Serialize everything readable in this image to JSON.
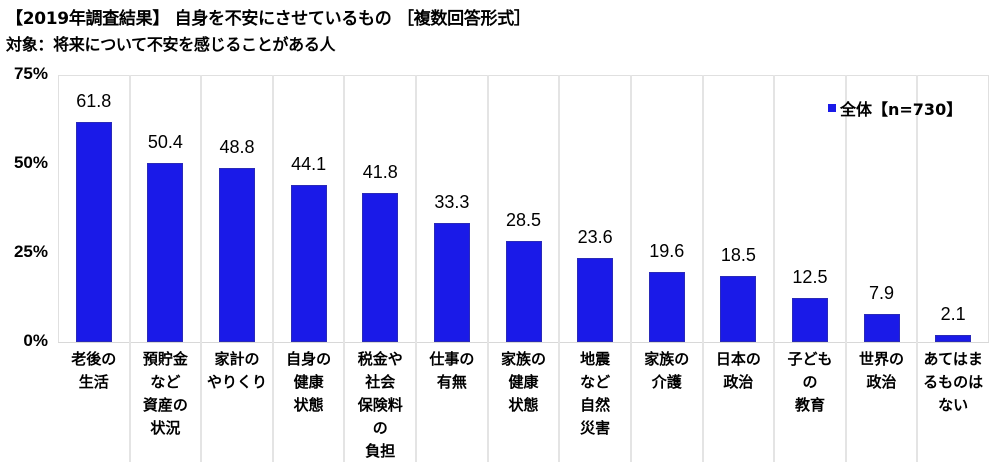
{
  "header": {
    "title": "【2019年調査結果】 自身を不安にさせているもの ［複数回答形式］",
    "subtitle": "対象：将来について不安を感じることがある人"
  },
  "legend": {
    "label": "全体【n=730】",
    "color": "#1a1ae8"
  },
  "y_axis": {
    "ticks": [
      "75%",
      "50%",
      "25%",
      "0%"
    ]
  },
  "categories": [
    {
      "lines": [
        "老後の",
        "生活"
      ],
      "value": "61.8"
    },
    {
      "lines": [
        "預貯金",
        "など",
        "資産の",
        "状況"
      ],
      "value": "50.4"
    },
    {
      "lines": [
        "家計の",
        "やりくり"
      ],
      "value": "48.8"
    },
    {
      "lines": [
        "自身の",
        "健康",
        "状態"
      ],
      "value": "44.1"
    },
    {
      "lines": [
        "税金や",
        "社会",
        "保険料",
        "の",
        "負担"
      ],
      "value": "41.8"
    },
    {
      "lines": [
        "仕事の",
        "有無"
      ],
      "value": "33.3"
    },
    {
      "lines": [
        "家族の",
        "健康",
        "状態"
      ],
      "value": "28.5"
    },
    {
      "lines": [
        "地震",
        "など",
        "自然",
        "災害"
      ],
      "value": "23.6"
    },
    {
      "lines": [
        "家族の",
        "介護"
      ],
      "value": "19.6"
    },
    {
      "lines": [
        "日本の",
        "政治"
      ],
      "value": "18.5"
    },
    {
      "lines": [
        "子ども",
        "の",
        "教育"
      ],
      "value": "12.5"
    },
    {
      "lines": [
        "世界の",
        "政治"
      ],
      "value": "7.9"
    },
    {
      "lines": [
        "あてはま",
        "るものは",
        "ない"
      ],
      "value": "2.1"
    }
  ],
  "chart_data": {
    "type": "bar",
    "title": "【2019年調査結果】 自身を不安にさせているもの ［複数回答形式］",
    "subtitle": "対象：将来について不安を感じることがある人",
    "categories": [
      "老後の生活",
      "預貯金など資産の状況",
      "家計のやりくり",
      "自身の健康状態",
      "税金や社会保険料の負担",
      "仕事の有無",
      "家族の健康状態",
      "地震など自然災害",
      "家族の介護",
      "日本の政治",
      "子どもの教育",
      "世界の政治",
      "あてはまるものはない"
    ],
    "series": [
      {
        "name": "全体【n=730】",
        "color": "#1a1ae8",
        "values": [
          61.8,
          50.4,
          48.8,
          44.1,
          41.8,
          33.3,
          28.5,
          23.6,
          19.6,
          18.5,
          12.5,
          7.9,
          2.1
        ]
      }
    ],
    "xlabel": "",
    "ylabel": "",
    "ylim": [
      0,
      75
    ],
    "yticks": [
      "0%",
      "25%",
      "50%",
      "75%"
    ],
    "grid": "vertical category dividers",
    "legend_position": "top-right inside plot"
  }
}
